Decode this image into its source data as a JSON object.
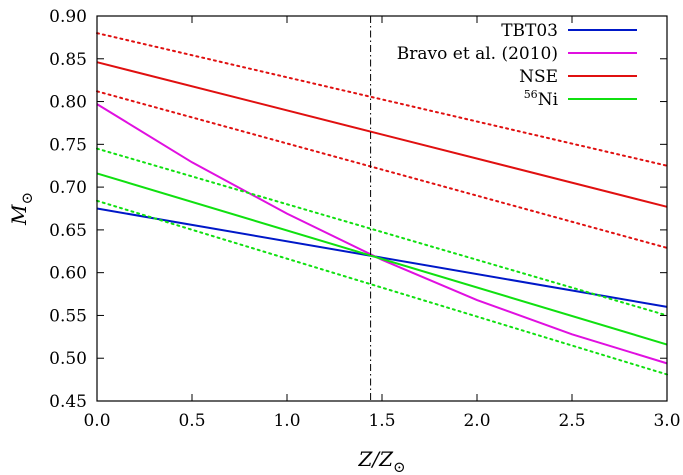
{
  "chart_data": {
    "type": "line",
    "xlabel": "Z/Z⊙",
    "ylabel": "M⊙",
    "xlim": [
      0.0,
      3.0
    ],
    "ylim": [
      0.45,
      0.9
    ],
    "xticks": [
      "0.0",
      "0.5",
      "1.0",
      "1.5",
      "2.0",
      "2.5",
      "3.0"
    ],
    "yticks": [
      "0.45",
      "0.50",
      "0.55",
      "0.60",
      "0.65",
      "0.70",
      "0.75",
      "0.80",
      "0.85",
      "0.90"
    ],
    "vline": {
      "x": 1.44,
      "style": "dash-dot",
      "color": "#000000"
    },
    "series": [
      {
        "name": "TBT03",
        "color": "#0018c8",
        "style": "solid",
        "legend": true,
        "x": [
          0.0,
          3.0
        ],
        "y": [
          0.675,
          0.56
        ]
      },
      {
        "name": "Bravo et al. (2010)",
        "color": "#e010e0",
        "style": "solid",
        "legend": true,
        "x": [
          0.0,
          0.5,
          1.0,
          1.5,
          2.0,
          2.5,
          3.0
        ],
        "y": [
          0.797,
          0.729,
          0.669,
          0.615,
          0.568,
          0.528,
          0.494
        ]
      },
      {
        "name": "NSE",
        "color": "#e01010",
        "style": "solid",
        "legend": true,
        "x": [
          0.0,
          3.0
        ],
        "y": [
          0.846,
          0.677
        ]
      },
      {
        "name": "NSE",
        "color": "#e01010",
        "style": "dotted",
        "legend": false,
        "x": [
          0.0,
          3.0
        ],
        "y": [
          0.88,
          0.725
        ]
      },
      {
        "name": "NSE",
        "color": "#e01010",
        "style": "dotted",
        "legend": false,
        "x": [
          0.0,
          3.0
        ],
        "y": [
          0.812,
          0.629
        ]
      },
      {
        "name": "Ni",
        "name_sup": "56",
        "color": "#10e010",
        "style": "solid",
        "legend": true,
        "x": [
          0.0,
          3.0
        ],
        "y": [
          0.716,
          0.516
        ]
      },
      {
        "name": "Ni",
        "name_sup": "56",
        "color": "#10e010",
        "style": "dotted",
        "legend": false,
        "x": [
          0.0,
          3.0
        ],
        "y": [
          0.745,
          0.55
        ]
      },
      {
        "name": "Ni",
        "name_sup": "56",
        "color": "#10e010",
        "style": "dotted",
        "legend": false,
        "x": [
          0.0,
          3.0
        ],
        "y": [
          0.684,
          0.481
        ]
      }
    ],
    "legend_position": "top-right",
    "grid": false
  }
}
